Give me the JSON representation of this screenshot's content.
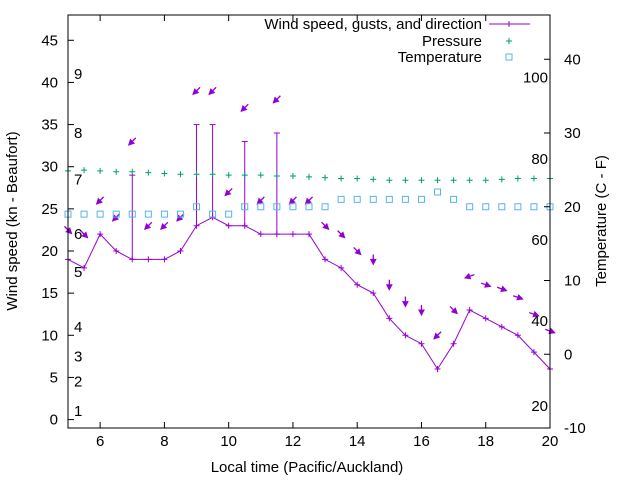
{
  "chart_data": {
    "type": "line",
    "xlabel": "Local time (Pacific/Auckland)",
    "ylabel": "Wind speed (kn - Beaufort)",
    "y2label": "Temperature (C - F)",
    "xlim": [
      5,
      20
    ],
    "ylim": [
      -1,
      48
    ],
    "y2lim": [
      -10,
      46
    ],
    "x_ticks": [
      "6",
      "8",
      "10",
      "12",
      "14",
      "16",
      "18",
      "20"
    ],
    "y_ticks": [
      "0",
      "5",
      "10",
      "15",
      "20",
      "25",
      "30",
      "35",
      "40",
      "45"
    ],
    "y2_ticks": [
      "-10",
      "0",
      "10",
      "20",
      "30",
      "40"
    ],
    "beaufort_labels": [
      {
        "text": "1",
        "y": 1.0
      },
      {
        "text": "2",
        "y": 4.5
      },
      {
        "text": "3",
        "y": 7.5
      },
      {
        "text": "4",
        "y": 11.0
      },
      {
        "text": "5",
        "y": 17.5
      },
      {
        "text": "6",
        "y": 22.0
      },
      {
        "text": "7",
        "y": 28.5
      },
      {
        "text": "8",
        "y": 34.0
      },
      {
        "text": "9",
        "y": 41.0
      }
    ],
    "fahrenheit_labels": [
      {
        "text": "20",
        "y": -7.0
      },
      {
        "text": "40",
        "y": 4.5
      },
      {
        "text": "60",
        "y": 15.5
      },
      {
        "text": "80",
        "y": 26.5
      },
      {
        "text": "100",
        "y": 37.5
      }
    ],
    "grid": false,
    "legend_position": "top-right",
    "series": [
      {
        "name": "Wind speed, gusts, and direction",
        "color": "#9400d3",
        "x": [
          5,
          5.5,
          6,
          6.5,
          7,
          7.5,
          8,
          8.5,
          9,
          9.5,
          10,
          10.5,
          11,
          11.5,
          12,
          12.5,
          13,
          13.5,
          14,
          14.5,
          15,
          15.5,
          16,
          16.5,
          17,
          17.5,
          18,
          18.5,
          19,
          19.5,
          20
        ],
        "values": [
          19,
          18,
          22,
          20,
          19,
          19,
          19,
          20,
          23,
          24,
          23,
          23,
          22,
          22,
          22,
          22,
          19,
          18,
          16,
          15,
          12,
          10,
          9,
          6,
          9,
          13,
          12,
          11,
          10,
          8,
          6
        ],
        "gusts": [
          null,
          null,
          null,
          null,
          29,
          null,
          null,
          null,
          35,
          35,
          null,
          33,
          null,
          34,
          null,
          null,
          null,
          null,
          null,
          null,
          null,
          null,
          null,
          null,
          null,
          null,
          null,
          null,
          null,
          null,
          null
        ],
        "direction_arrows": [
          {
            "x": 5.0,
            "y": 22.5,
            "dir": "down-right"
          },
          {
            "x": 5.5,
            "y": 22.0,
            "dir": "down-right"
          },
          {
            "x": 6.0,
            "y": 26.0,
            "dir": "down-left"
          },
          {
            "x": 6.5,
            "y": 24.0,
            "dir": "down-left"
          },
          {
            "x": 7.0,
            "y": 33.0,
            "dir": "down-left"
          },
          {
            "x": 7.5,
            "y": 23.0,
            "dir": "down-left"
          },
          {
            "x": 8.0,
            "y": 23.0,
            "dir": "down-left"
          },
          {
            "x": 8.5,
            "y": 24.0,
            "dir": "down-left"
          },
          {
            "x": 9.0,
            "y": 39.0,
            "dir": "down-left"
          },
          {
            "x": 9.5,
            "y": 39.0,
            "dir": "down-left"
          },
          {
            "x": 10.0,
            "y": 27.0,
            "dir": "down-left"
          },
          {
            "x": 10.5,
            "y": 37.0,
            "dir": "down-left"
          },
          {
            "x": 11.0,
            "y": 26.0,
            "dir": "down-left"
          },
          {
            "x": 11.5,
            "y": 38.0,
            "dir": "down-left"
          },
          {
            "x": 12.0,
            "y": 26.0,
            "dir": "down-left"
          },
          {
            "x": 12.5,
            "y": 26.0,
            "dir": "down-left"
          },
          {
            "x": 13.0,
            "y": 23.0,
            "dir": "down-right"
          },
          {
            "x": 13.5,
            "y": 22.0,
            "dir": "down-right"
          },
          {
            "x": 14.0,
            "y": 20.0,
            "dir": "down-right"
          },
          {
            "x": 14.5,
            "y": 19.0,
            "dir": "down"
          },
          {
            "x": 15.0,
            "y": 16.0,
            "dir": "down"
          },
          {
            "x": 15.5,
            "y": 14.0,
            "dir": "down"
          },
          {
            "x": 16.0,
            "y": 13.0,
            "dir": "down"
          },
          {
            "x": 16.5,
            "y": 10.0,
            "dir": "down-left"
          },
          {
            "x": 17.0,
            "y": 13.0,
            "dir": "down-right"
          },
          {
            "x": 17.5,
            "y": 17.0,
            "dir": "left"
          },
          {
            "x": 18.0,
            "y": 16.0,
            "dir": "right"
          },
          {
            "x": 18.5,
            "y": 15.5,
            "dir": "right"
          },
          {
            "x": 19.0,
            "y": 14.5,
            "dir": "right"
          },
          {
            "x": 19.5,
            "y": 12.5,
            "dir": "right"
          },
          {
            "x": 20.0,
            "y": 10.5,
            "dir": "right"
          }
        ]
      },
      {
        "name": "Pressure",
        "color": "#009e73",
        "x": [
          5,
          5.5,
          6,
          6.5,
          7,
          7.5,
          8,
          8.5,
          9,
          9.5,
          10,
          10.5,
          11,
          11.5,
          12,
          12.5,
          13,
          13.5,
          14,
          14.5,
          15,
          15.5,
          16,
          16.5,
          17,
          17.5,
          18,
          18.5,
          19,
          19.5,
          20
        ],
        "values": [
          29.5,
          29.6,
          29.5,
          29.4,
          29.4,
          29.3,
          29.2,
          29.1,
          29.1,
          29.1,
          29.0,
          29.0,
          29.0,
          28.9,
          28.9,
          28.8,
          28.7,
          28.6,
          28.6,
          28.5,
          28.4,
          28.4,
          28.4,
          28.4,
          28.4,
          28.4,
          28.4,
          28.5,
          28.6,
          28.6,
          28.6
        ]
      },
      {
        "name": "Temperature",
        "color": "#56b4e9",
        "axis": "y2",
        "x": [
          5,
          5.5,
          6,
          6.5,
          7,
          7.5,
          8,
          8.5,
          9,
          9.5,
          10,
          10.5,
          11,
          11.5,
          12,
          12.5,
          13,
          13.5,
          14,
          14.5,
          15,
          15.5,
          16,
          16.5,
          17,
          17.5,
          18,
          18.5,
          19,
          19.5,
          20
        ],
        "values": [
          19,
          19,
          19,
          19,
          19,
          19,
          19,
          19,
          20,
          19,
          19,
          20,
          20,
          20,
          20,
          20,
          20,
          21,
          21,
          21,
          21,
          21,
          21,
          22,
          21,
          20,
          20,
          20,
          20,
          20,
          20
        ]
      }
    ]
  }
}
